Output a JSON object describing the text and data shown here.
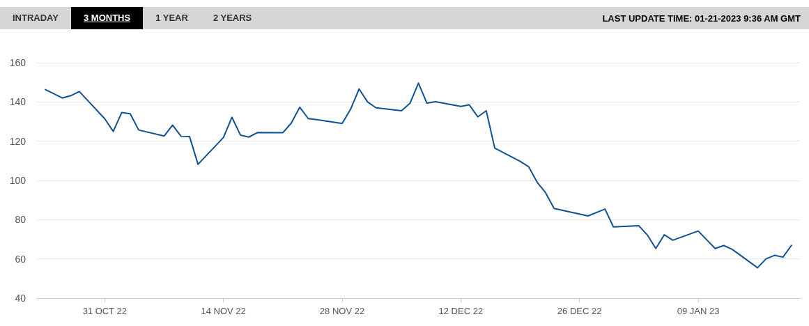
{
  "chart_data": {
    "type": "line",
    "subtitle": "LAST UPDATE TIME: 01-21-2023 9:36 AM GMT",
    "annotations": [
      "INTRADAY",
      "3 MONTHS",
      "1 YEAR",
      "2 YEARS"
    ],
    "x": [
      "2022-10-24",
      "2022-10-26",
      "2022-10-27",
      "2022-10-28",
      "2022-10-31",
      "2022-11-01",
      "2022-11-02",
      "2022-11-03",
      "2022-11-04",
      "2022-11-07",
      "2022-11-08",
      "2022-11-09",
      "2022-11-10",
      "2022-11-11",
      "2022-11-14",
      "2022-11-15",
      "2022-11-16",
      "2022-11-17",
      "2022-11-18",
      "2022-11-21",
      "2022-11-22",
      "2022-11-23",
      "2022-11-24",
      "2022-11-25",
      "2022-11-28",
      "2022-11-29",
      "2022-11-30",
      "2022-12-01",
      "2022-12-02",
      "2022-12-05",
      "2022-12-06",
      "2022-12-07",
      "2022-12-08",
      "2022-12-09",
      "2022-12-12",
      "2022-12-13",
      "2022-12-14",
      "2022-12-15",
      "2022-12-16",
      "2022-12-19",
      "2022-12-20",
      "2022-12-21",
      "2022-12-22",
      "2022-12-23",
      "2022-12-27",
      "2022-12-29",
      "2022-12-30",
      "2023-01-02",
      "2023-01-03",
      "2023-01-04",
      "2023-01-05",
      "2023-01-06",
      "2023-01-09",
      "2023-01-11",
      "2023-01-12",
      "2023-01-13",
      "2023-01-16",
      "2023-01-17",
      "2023-01-18",
      "2023-01-19",
      "2023-01-20"
    ],
    "series": [
      {
        "color": "#0d5196",
        "values": [
          146.3,
          142.0,
          143.2,
          145.3,
          131.4,
          125.0,
          134.6,
          134.0,
          125.7,
          122.6,
          128.2,
          122.5,
          122.4,
          108.2,
          121.9,
          132.2,
          123.1,
          122.1,
          124.4,
          124.3,
          129.2,
          137.3,
          131.5,
          131.0,
          129.0,
          136.3,
          146.6,
          140.0,
          137.0,
          135.5,
          139.3,
          149.6,
          139.4,
          140.1,
          137.7,
          138.5,
          132.4,
          135.5,
          116.5,
          109.7,
          107.0,
          99.1,
          93.7,
          85.7,
          81.9,
          85.4,
          76.3,
          76.9,
          72.2,
          65.3,
          72.3,
          69.5,
          74.2,
          65.3,
          66.8,
          64.9,
          55.5,
          60.0,
          61.8,
          60.9,
          66.9
        ]
      }
    ],
    "xlim": [
      "2022-10-23",
      "2023-01-21"
    ],
    "xticks": [
      {
        "value": "2022-10-31",
        "label": "31 OCT 22"
      },
      {
        "value": "2022-11-14",
        "label": "14 NOV 22"
      },
      {
        "value": "2022-11-28",
        "label": "28 NOV 22"
      },
      {
        "value": "2022-12-12",
        "label": "12 DEC 22"
      },
      {
        "value": "2022-12-26",
        "label": "26 DEC 22"
      },
      {
        "value": "2023-01-09",
        "label": "09 JAN 23"
      }
    ],
    "ylim": [
      40,
      160
    ],
    "yticks": [
      40,
      60,
      80,
      100,
      120,
      140,
      160
    ],
    "grid": "y",
    "marker": "none",
    "line_style": "solid"
  }
}
